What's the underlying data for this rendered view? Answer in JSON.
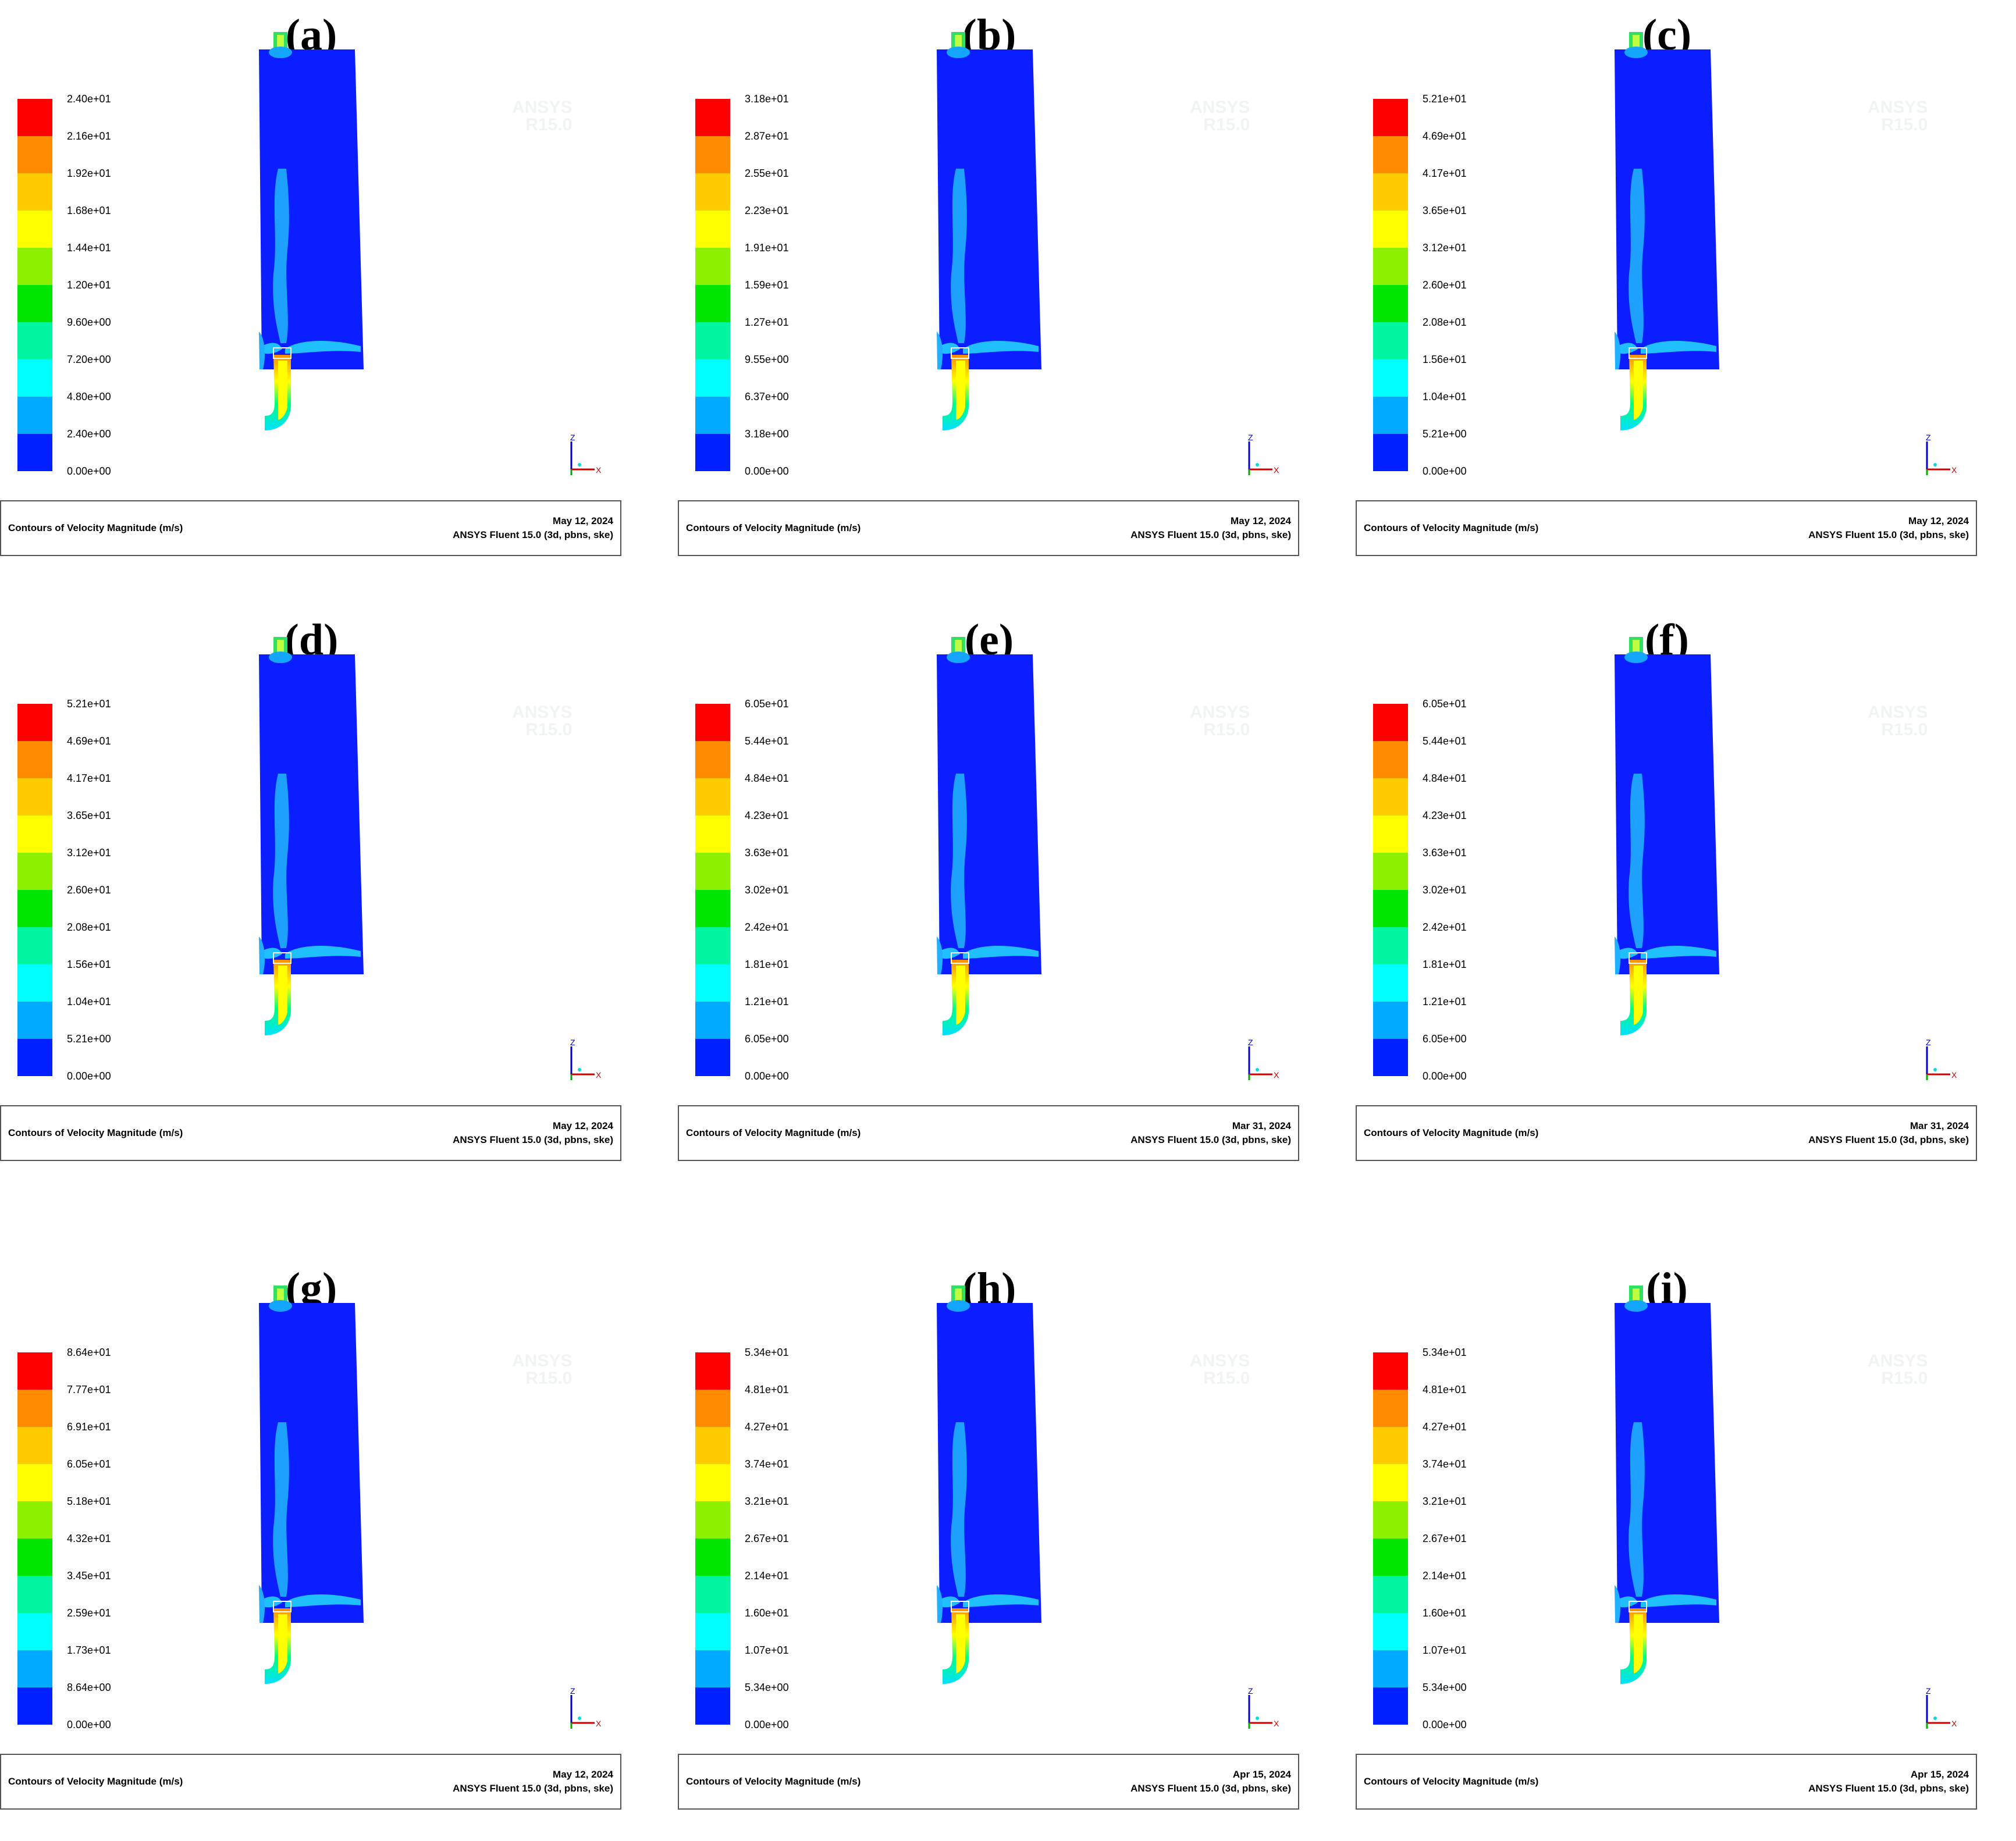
{
  "legend_colors": [
    "#ff0000",
    "#ff8c00",
    "#ffcc00",
    "#ffff00",
    "#8cf000",
    "#00e600",
    "#00f5a0",
    "#00ffff",
    "#00aaff",
    "#0020ff"
  ],
  "panels": [
    {
      "label": "(a)",
      "ticks": [
        "2.40e+01",
        "2.16e+01",
        "1.92e+01",
        "1.68e+01",
        "1.44e+01",
        "1.20e+01",
        "9.60e+00",
        "7.20e+00",
        "4.80e+00",
        "2.40e+00",
        "0.00e+00"
      ],
      "title": "Contours of Velocity Magnitude (m/s)",
      "date": "May 12, 2024",
      "software": "ANSYS Fluent 15.0 (3d, pbns, ske)"
    },
    {
      "label": "(b)",
      "ticks": [
        "3.18e+01",
        "2.87e+01",
        "2.55e+01",
        "2.23e+01",
        "1.91e+01",
        "1.59e+01",
        "1.27e+01",
        "9.55e+00",
        "6.37e+00",
        "3.18e+00",
        "0.00e+00"
      ],
      "title": "Contours of Velocity Magnitude (m/s)",
      "date": "May 12, 2024",
      "software": "ANSYS Fluent 15.0 (3d, pbns, ske)"
    },
    {
      "label": "(c)",
      "ticks": [
        "5.21e+01",
        "4.69e+01",
        "4.17e+01",
        "3.65e+01",
        "3.12e+01",
        "2.60e+01",
        "2.08e+01",
        "1.56e+01",
        "1.04e+01",
        "5.21e+00",
        "0.00e+00"
      ],
      "title": "Contours of Velocity Magnitude (m/s)",
      "date": "May 12, 2024",
      "software": "ANSYS Fluent 15.0 (3d, pbns, ske)"
    },
    {
      "label": "(d)",
      "ticks": [
        "5.21e+01",
        "4.69e+01",
        "4.17e+01",
        "3.65e+01",
        "3.12e+01",
        "2.60e+01",
        "2.08e+01",
        "1.56e+01",
        "1.04e+01",
        "5.21e+00",
        "0.00e+00"
      ],
      "title": "Contours of Velocity Magnitude (m/s)",
      "date": "May 12, 2024",
      "software": "ANSYS Fluent 15.0 (3d, pbns, ske)"
    },
    {
      "label": "(e)",
      "ticks": [
        "6.05e+01",
        "5.44e+01",
        "4.84e+01",
        "4.23e+01",
        "3.63e+01",
        "3.02e+01",
        "2.42e+01",
        "1.81e+01",
        "1.21e+01",
        "6.05e+00",
        "0.00e+00"
      ],
      "title": "Contours of Velocity Magnitude (m/s)",
      "date": "Mar 31, 2024",
      "software": "ANSYS Fluent 15.0 (3d, pbns, ske)"
    },
    {
      "label": "(f)",
      "ticks": [
        "6.05e+01",
        "5.44e+01",
        "4.84e+01",
        "4.23e+01",
        "3.63e+01",
        "3.02e+01",
        "2.42e+01",
        "1.81e+01",
        "1.21e+01",
        "6.05e+00",
        "0.00e+00"
      ],
      "title": "Contours of Velocity Magnitude (m/s)",
      "date": "Mar 31, 2024",
      "software": "ANSYS Fluent 15.0 (3d, pbns, ske)"
    },
    {
      "label": "(g)",
      "ticks": [
        "8.64e+01",
        "7.77e+01",
        "6.91e+01",
        "6.05e+01",
        "5.18e+01",
        "4.32e+01",
        "3.45e+01",
        "2.59e+01",
        "1.73e+01",
        "8.64e+00",
        "0.00e+00"
      ],
      "title": "Contours of Velocity Magnitude (m/s)",
      "date": "May 12, 2024",
      "software": "ANSYS Fluent 15.0 (3d, pbns, ske)"
    },
    {
      "label": "(h)",
      "ticks": [
        "5.34e+01",
        "4.81e+01",
        "4.27e+01",
        "3.74e+01",
        "3.21e+01",
        "2.67e+01",
        "2.14e+01",
        "1.60e+01",
        "1.07e+01",
        "5.34e+00",
        "0.00e+00"
      ],
      "title": "Contours of Velocity Magnitude (m/s)",
      "date": "Apr 15, 2024",
      "software": "ANSYS Fluent 15.0 (3d, pbns, ske)"
    },
    {
      "label": "(i)",
      "ticks": [
        "5.34e+01",
        "4.81e+01",
        "4.27e+01",
        "3.74e+01",
        "3.21e+01",
        "2.67e+01",
        "2.14e+01",
        "1.60e+01",
        "1.07e+01",
        "5.34e+00",
        "0.00e+00"
      ],
      "title": "Contours of Velocity Magnitude (m/s)",
      "date": "Apr 15, 2024",
      "software": "ANSYS Fluent 15.0 (3d, pbns, ske)"
    }
  ],
  "axis_labels": {
    "z": "Z",
    "x": "X"
  },
  "watermark": {
    "line1": "ANSYS",
    "line2": "R15.0"
  }
}
